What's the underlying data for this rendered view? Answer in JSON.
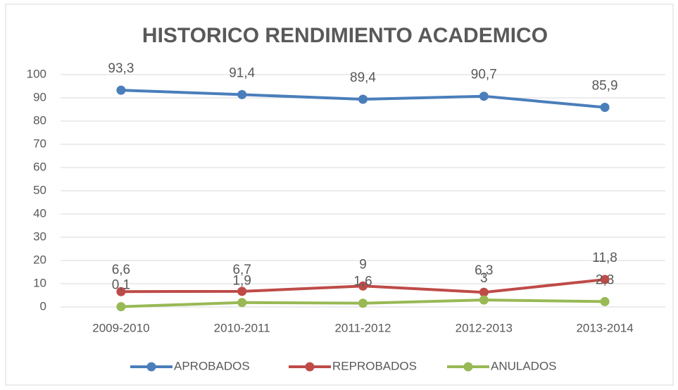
{
  "chart_data": {
    "type": "line",
    "title": "HISTORICO RENDIMIENTO ACADEMICO",
    "categories": [
      "2009-2010",
      "2010-2011",
      "2011-2012",
      "2012-2013",
      "2013-2014"
    ],
    "series": [
      {
        "name": "APROBADOS",
        "color": "#4a7ebb",
        "values": [
          93.3,
          91.4,
          89.4,
          90.7,
          85.9
        ],
        "value_labels": [
          "93,3",
          "91,4",
          "89,4",
          "90,7",
          "85,9"
        ]
      },
      {
        "name": "REPROBADOS",
        "color": "#be4b48",
        "values": [
          6.6,
          6.7,
          9,
          6.3,
          11.8
        ],
        "value_labels": [
          "6,6",
          "6,7",
          "9",
          "6,3",
          "11,8"
        ]
      },
      {
        "name": "ANULADOS",
        "color": "#98b954",
        "values": [
          0.1,
          1.9,
          1.6,
          3,
          2.3
        ],
        "value_labels": [
          "0,1",
          "1,9",
          "1,6",
          "3",
          "2,3"
        ]
      }
    ],
    "ylim": [
      0,
      100
    ],
    "yticks": [
      0,
      10,
      20,
      30,
      40,
      50,
      60,
      70,
      80,
      90,
      100
    ],
    "grid": true,
    "legend": "bottom"
  }
}
